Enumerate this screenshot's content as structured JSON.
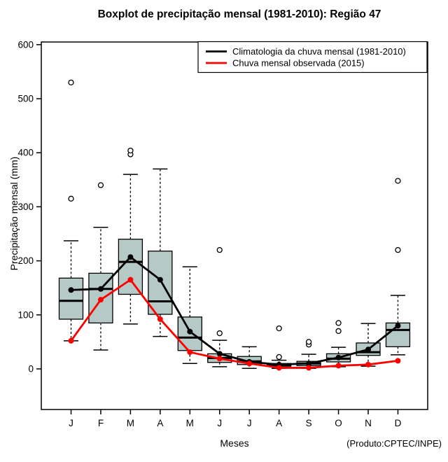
{
  "title": "Boxplot de precipitação mensal (1981-2010): Região 47",
  "credit": "(Produto:CPTEC/INPE)",
  "chart_data": {
    "type": "boxplot+line",
    "title": "Boxplot de precipitação mensal (1981-2010): Região 47",
    "xlabel": "Meses",
    "ylabel": "Precipitação mensal (mm)",
    "ylim": [
      0,
      600
    ],
    "yticks": [
      0,
      100,
      200,
      300,
      400,
      500,
      600
    ],
    "grid": false,
    "legend_position": "top-right",
    "categories": [
      "J",
      "F",
      "M",
      "A",
      "M",
      "J",
      "J",
      "A",
      "S",
      "O",
      "N",
      "D"
    ],
    "box_fill_color": "#b5c9c7",
    "box_edge_color": "#000000",
    "boxes": [
      {
        "month": "J",
        "whisker_low": 52,
        "q1": 92,
        "median": 126,
        "q3": 168,
        "whisker_high": 237,
        "outliers": [
          315,
          530
        ]
      },
      {
        "month": "F",
        "whisker_low": 35,
        "q1": 85,
        "median": 148,
        "q3": 177,
        "whisker_high": 262,
        "outliers": [
          340
        ]
      },
      {
        "month": "M",
        "whisker_low": 83,
        "q1": 138,
        "median": 198,
        "q3": 240,
        "whisker_high": 360,
        "outliers": [
          397,
          404
        ]
      },
      {
        "month": "A",
        "whisker_low": 60,
        "q1": 101,
        "median": 125,
        "q3": 218,
        "whisker_high": 370,
        "outliers": []
      },
      {
        "month": "M",
        "whisker_low": 10,
        "q1": 34,
        "median": 58,
        "q3": 96,
        "whisker_high": 189,
        "outliers": []
      },
      {
        "month": "J",
        "whisker_low": 4,
        "q1": 12,
        "median": 20,
        "q3": 28,
        "whisker_high": 53,
        "outliers": [
          66,
          220
        ]
      },
      {
        "month": "J",
        "whisker_low": 1,
        "q1": 8,
        "median": 14,
        "q3": 23,
        "whisker_high": 41,
        "outliers": []
      },
      {
        "month": "A",
        "whisker_low": 1,
        "q1": 5,
        "median": 7,
        "q3": 10,
        "whisker_high": 16,
        "outliers": [
          22,
          75
        ]
      },
      {
        "month": "S",
        "whisker_low": 1,
        "q1": 6,
        "median": 10,
        "q3": 14,
        "whisker_high": 27,
        "outliers": [
          45,
          50
        ]
      },
      {
        "month": "O",
        "whisker_low": 4,
        "q1": 13,
        "median": 19,
        "q3": 28,
        "whisker_high": 40,
        "outliers": [
          70,
          85
        ]
      },
      {
        "month": "N",
        "whisker_low": 5,
        "q1": 25,
        "median": 31,
        "q3": 48,
        "whisker_high": 84,
        "outliers": []
      },
      {
        "month": "D",
        "whisker_low": 26,
        "q1": 41,
        "median": 72,
        "q3": 85,
        "whisker_high": 136,
        "outliers": [
          220,
          348
        ]
      }
    ],
    "series": [
      {
        "name": "Climatologia da chuva mensal (1981-2010)",
        "color": "#000000",
        "values": [
          146,
          148,
          207,
          165,
          69,
          28,
          13,
          8,
          10,
          21,
          36,
          80
        ]
      },
      {
        "name": "Chuva mensal observada (2015)",
        "color": "#ff0000",
        "values": [
          52,
          128,
          165,
          92,
          31,
          19,
          10,
          2,
          2,
          6,
          8,
          15
        ]
      }
    ],
    "legend": [
      {
        "label": "Climatologia da chuva mensal (1981-2010)",
        "color": "#000000"
      },
      {
        "label": "Chuva mensal observada (2015)",
        "color": "#ff0000"
      }
    ]
  }
}
